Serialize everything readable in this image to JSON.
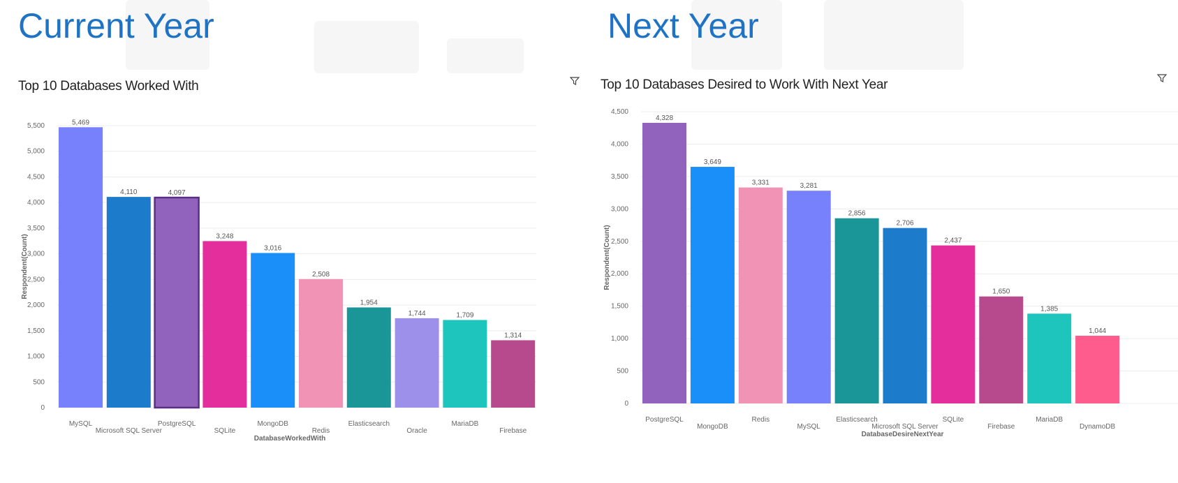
{
  "headings": {
    "left": "Current Year",
    "right": "Next Year"
  },
  "colors": {
    "heading": "#1f73c5",
    "grid": "#ececec",
    "tick": "#666666",
    "label": "#555555"
  },
  "chart_data": [
    {
      "type": "bar",
      "title": "Top 10 Databases Worked With",
      "xlabel": "DatabaseWorkedWith",
      "ylabel": "Respondent(Count)",
      "ylim": [
        0,
        5500
      ],
      "yticks": [
        0,
        500,
        1000,
        1500,
        2000,
        2500,
        3000,
        3500,
        4000,
        4500,
        5000,
        5500
      ],
      "ytick_labels": [
        "0",
        "500",
        "1,000",
        "1,500",
        "2,000",
        "2,500",
        "3,000",
        "3,500",
        "4,000",
        "4,500",
        "5,000",
        "5,500"
      ],
      "categories": [
        "MySQL",
        "Microsoft SQL Server",
        "PostgreSQL",
        "SQLite",
        "MongoDB",
        "Redis",
        "Elasticsearch",
        "Oracle",
        "MariaDB",
        "Firebase"
      ],
      "values": [
        5469,
        4110,
        4097,
        3248,
        3016,
        2508,
        1954,
        1744,
        1709,
        1314
      ],
      "value_labels": [
        "5,469",
        "4,110",
        "4,097",
        "3,248",
        "3,016",
        "2,508",
        "1,954",
        "1,744",
        "1,709",
        "1,314"
      ],
      "bar_colors": [
        "#7681fb",
        "#1c7ccb",
        "#9163bd",
        "#e32e9b",
        "#1a8ffa",
        "#f193b5",
        "#1a9699",
        "#9c90ea",
        "#1dc5bd",
        "#b74a8c"
      ],
      "highlighted": "PostgreSQL"
    },
    {
      "type": "bar",
      "title": "Top 10 Databases Desired to Work With Next Year",
      "xlabel": "DatabaseDesireNextYear",
      "ylabel": "Respondent(Count)",
      "ylim": [
        0,
        4500
      ],
      "yticks": [
        0,
        500,
        1000,
        1500,
        2000,
        2500,
        3000,
        3500,
        4000,
        4500
      ],
      "ytick_labels": [
        "0",
        "500",
        "1,000",
        "1,500",
        "2,000",
        "2,500",
        "3,000",
        "3,500",
        "4,000",
        "4,500"
      ],
      "categories": [
        "PostgreSQL",
        "MongoDB",
        "Redis",
        "MySQL",
        "Elasticsearch",
        "Microsoft SQL Server",
        "SQLite",
        "Firebase",
        "MariaDB",
        "DynamoDB"
      ],
      "values": [
        4328,
        3649,
        3331,
        3281,
        2856,
        2706,
        2437,
        1650,
        1385,
        1044
      ],
      "value_labels": [
        "4,328",
        "3,649",
        "3,331",
        "3,281",
        "2,856",
        "2,706",
        "2,437",
        "1,650",
        "1,385",
        "1,044"
      ],
      "bar_colors": [
        "#9163bd",
        "#1a8ffa",
        "#f193b5",
        "#7681fb",
        "#1a9699",
        "#1c7ccb",
        "#e32e9b",
        "#b74a8c",
        "#1dc5bd",
        "#ff5c8e"
      ],
      "highlighted": ""
    }
  ]
}
